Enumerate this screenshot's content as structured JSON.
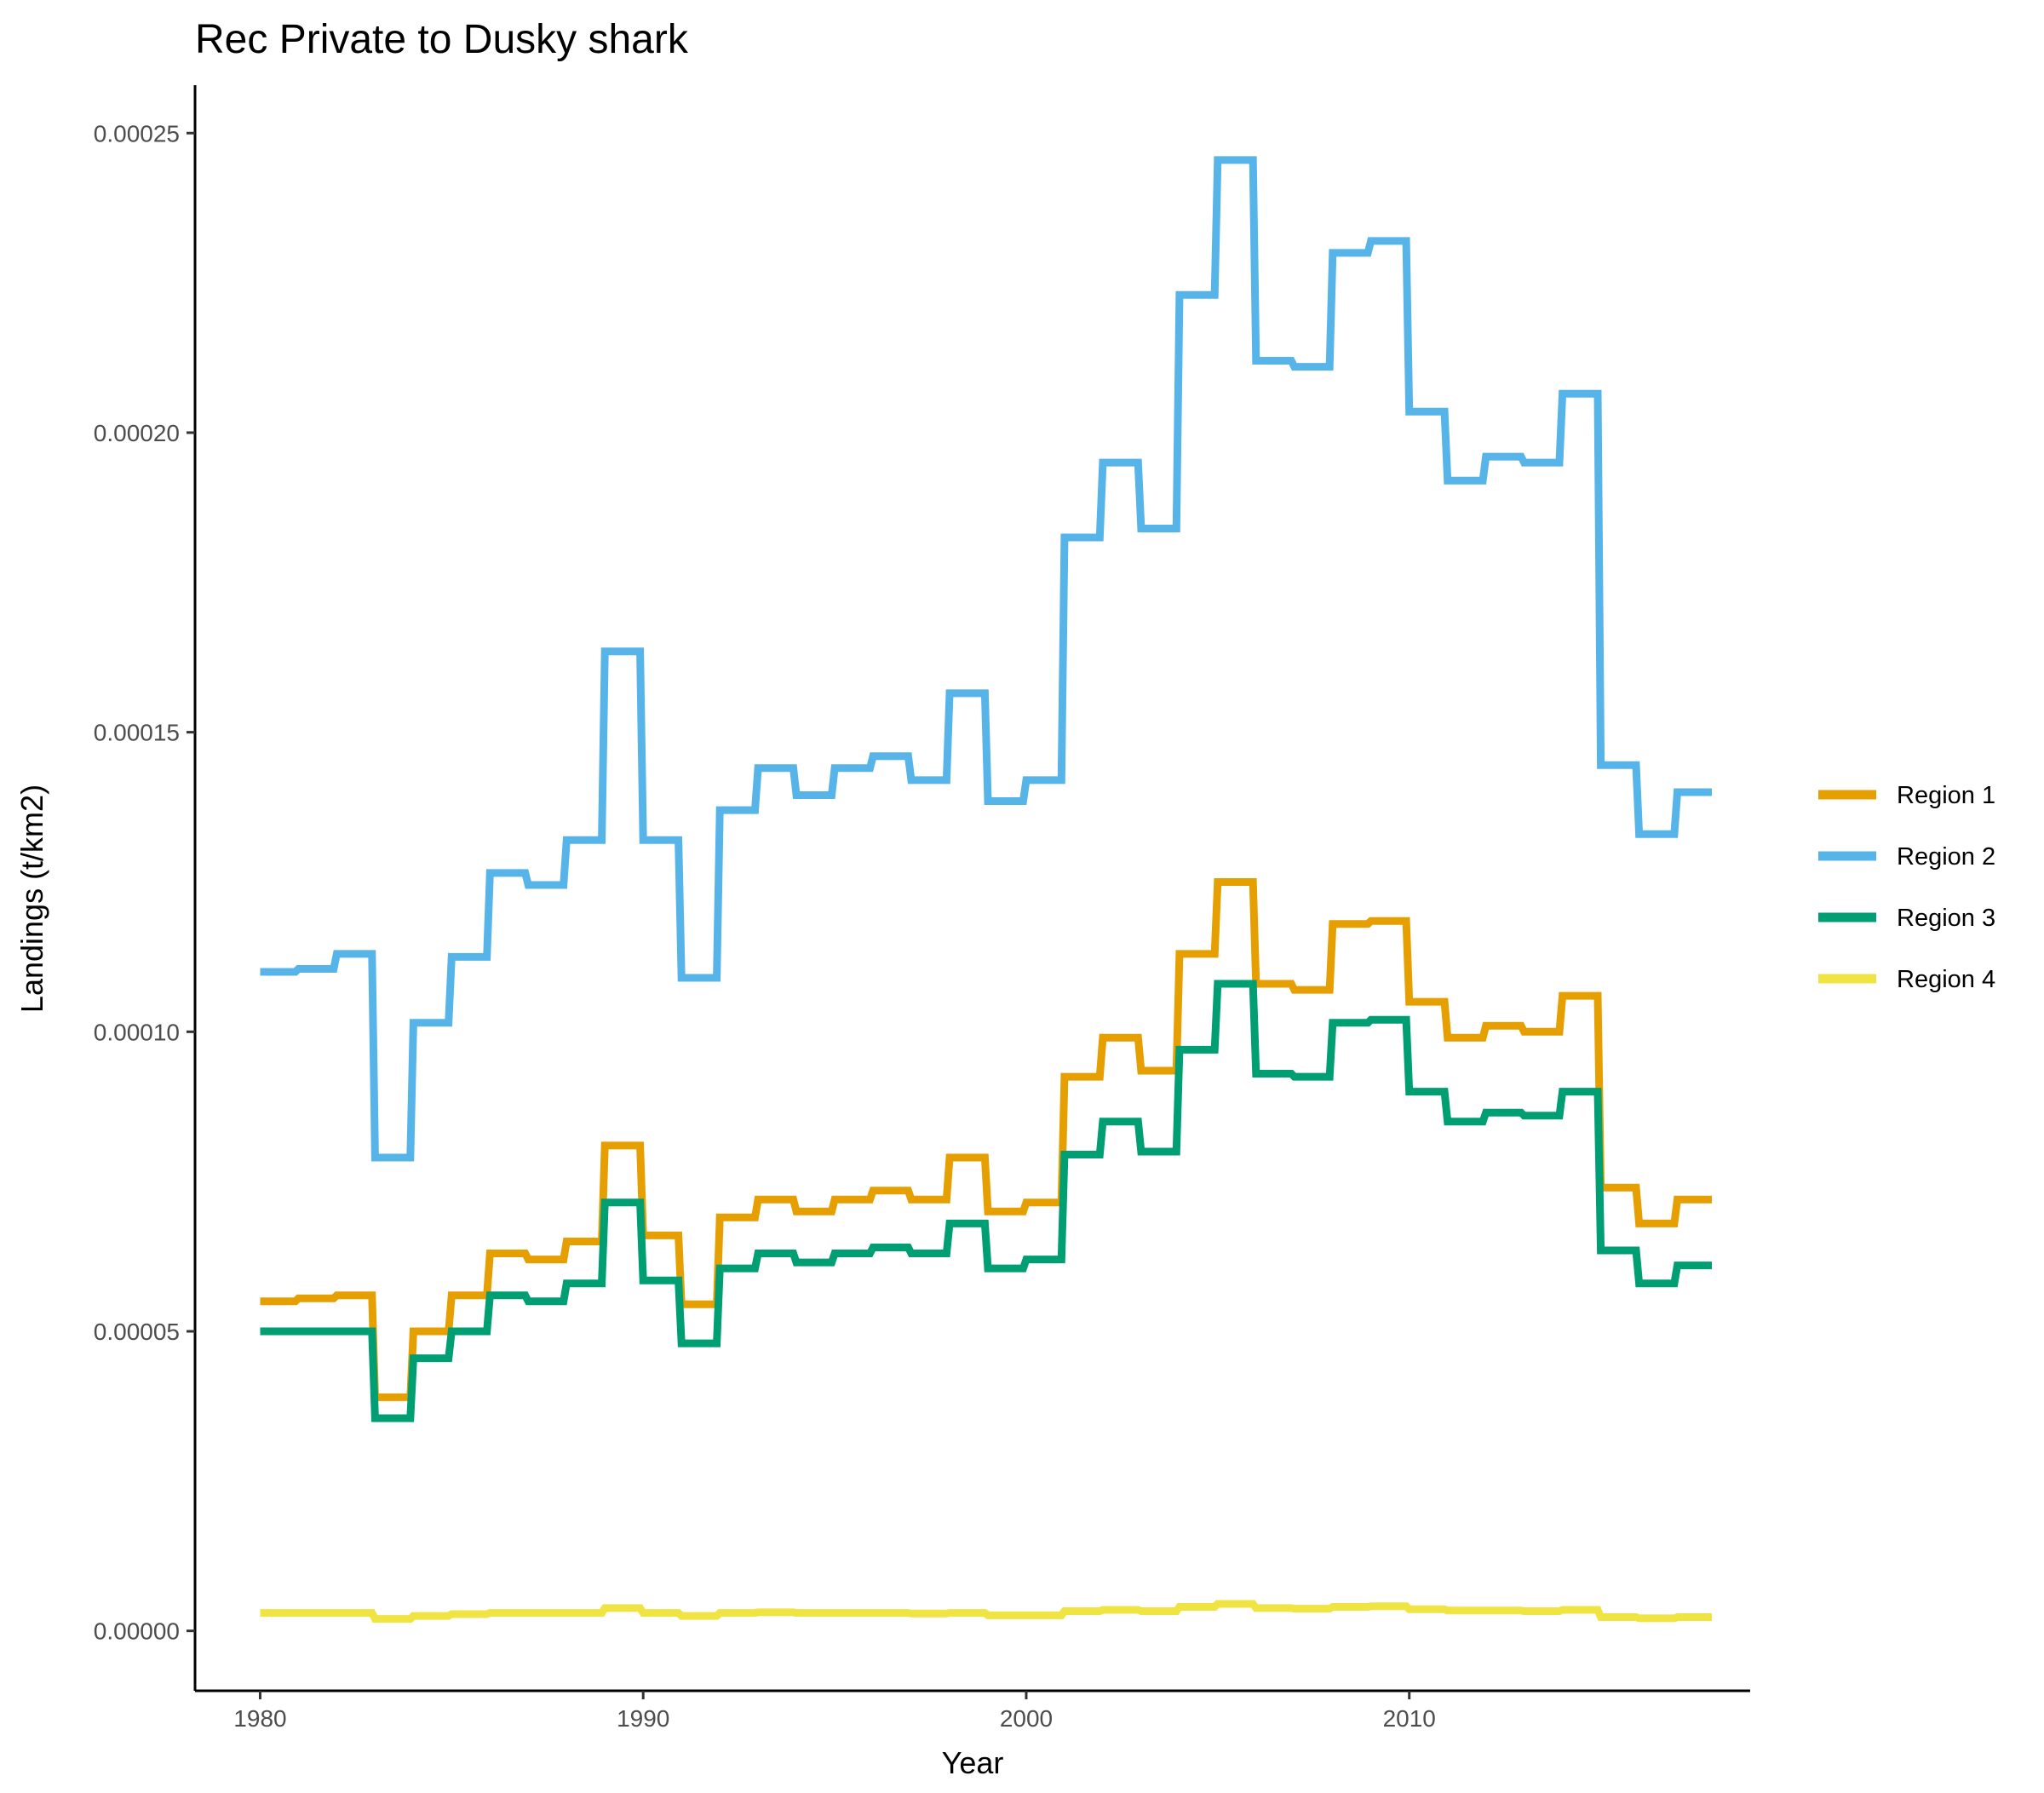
{
  "chart_data": {
    "type": "line",
    "title": "Rec Private to Dusky shark",
    "xlabel": "Year",
    "ylabel": "Landings (t/km2)",
    "xlim": [
      1978.3,
      2018.9
    ],
    "ylim": [
      -1e-05,
      0.000258
    ],
    "x_ticks": [
      1980,
      1990,
      2000,
      2010
    ],
    "x_tick_labels": [
      "1980",
      "1990",
      "2000",
      "2010"
    ],
    "y_ticks": [
      0,
      5e-05,
      0.0001,
      0.00015,
      0.0002,
      0.00025
    ],
    "y_tick_labels": [
      "0.00000",
      "0.00005",
      "0.00010",
      "0.00015",
      "0.00020",
      "0.00025"
    ],
    "grid": false,
    "legend_position": "right",
    "series": [
      {
        "name": "Region 1",
        "color": "#E69F00",
        "values": [
          5.5e-05,
          5.55e-05,
          5.6e-05,
          3.9e-05,
          5e-05,
          5.6e-05,
          6.3e-05,
          6.2e-05,
          6.5e-05,
          8.1e-05,
          6.6e-05,
          5.45e-05,
          6.9e-05,
          7.2e-05,
          7e-05,
          7.2e-05,
          7.35e-05,
          7.2e-05,
          7.9e-05,
          7e-05,
          7.15e-05,
          9.25e-05,
          9.9e-05,
          9.35e-05,
          0.000113,
          0.000125,
          0.000108,
          0.000107,
          0.000118,
          0.0001185,
          0.000105,
          9.9e-05,
          0.000101,
          0.0001,
          0.000106,
          7.4e-05,
          6.8e-05,
          7.2e-05
        ]
      },
      {
        "name": "Region 2",
        "color": "#56B4E9",
        "values": [
          0.00011,
          0.0001105,
          0.000113,
          7.9e-05,
          0.0001015,
          0.0001125,
          0.0001265,
          0.0001245,
          0.000132,
          0.0001635,
          0.000132,
          0.000109,
          0.000137,
          0.000144,
          0.0001395,
          0.000144,
          0.000146,
          0.000142,
          0.0001565,
          0.0001385,
          0.000142,
          0.0001825,
          0.000195,
          0.000184,
          0.000223,
          0.0002455,
          0.000212,
          0.000211,
          0.00023,
          0.000232,
          0.0002035,
          0.000192,
          0.000196,
          0.000195,
          0.0002065,
          0.0001445,
          0.000133,
          0.00014
        ]
      },
      {
        "name": "Region 3",
        "color": "#009E73",
        "values": [
          5e-05,
          5e-05,
          5e-05,
          3.55e-05,
          4.55e-05,
          5e-05,
          5.6e-05,
          5.5e-05,
          5.8e-05,
          7.15e-05,
          5.85e-05,
          4.8e-05,
          6.05e-05,
          6.3e-05,
          6.15e-05,
          6.3e-05,
          6.4e-05,
          6.3e-05,
          6.8e-05,
          6.05e-05,
          6.2e-05,
          7.95e-05,
          8.5e-05,
          8e-05,
          9.7e-05,
          0.000108,
          9.3e-05,
          9.25e-05,
          0.0001015,
          0.000102,
          9e-05,
          8.5e-05,
          8.65e-05,
          8.6e-05,
          9e-05,
          6.35e-05,
          5.8e-05,
          6.1e-05
        ]
      },
      {
        "name": "Region 4",
        "color": "#F0E442",
        "values": [
          3e-06,
          3e-06,
          3e-06,
          2e-06,
          2.5e-06,
          2.8e-06,
          3e-06,
          3e-06,
          3e-06,
          3.8e-06,
          3e-06,
          2.5e-06,
          3e-06,
          3.1e-06,
          3e-06,
          3e-06,
          3e-06,
          2.9e-06,
          3e-06,
          2.6e-06,
          2.6e-06,
          3.3e-06,
          3.5e-06,
          3.3e-06,
          4e-06,
          4.5e-06,
          3.8e-06,
          3.7e-06,
          4e-06,
          4.1e-06,
          3.6e-06,
          3.4e-06,
          3.4e-06,
          3.3e-06,
          3.5e-06,
          2.3e-06,
          2.1e-06,
          2.3e-06
        ]
      }
    ],
    "x": [
      1980,
      1981,
      1982,
      1983,
      1984,
      1985,
      1986,
      1987,
      1988,
      1989,
      1990,
      1991,
      1992,
      1993,
      1994,
      1995,
      1996,
      1997,
      1998,
      1999,
      2000,
      2001,
      2002,
      2003,
      2004,
      2005,
      2006,
      2007,
      2008,
      2009,
      2010,
      2011,
      2012,
      2013,
      2014,
      2015,
      2016,
      2017
    ]
  }
}
